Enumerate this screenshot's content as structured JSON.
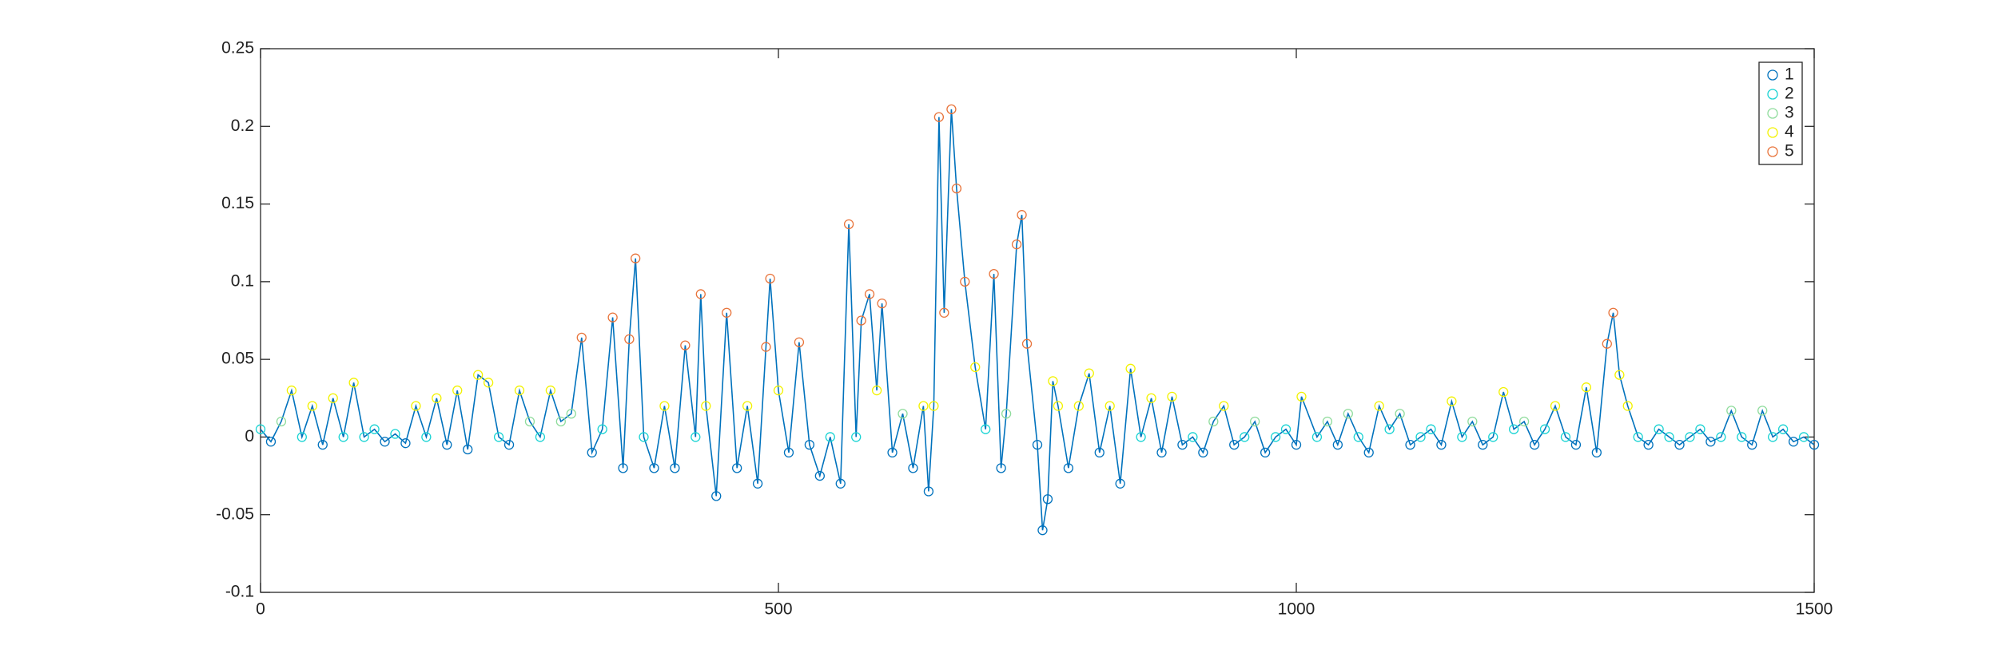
{
  "chart_data": {
    "type": "line",
    "x": [
      0,
      10,
      20,
      30,
      40,
      50,
      60,
      70,
      80,
      90,
      100,
      110,
      120,
      130,
      140,
      150,
      160,
      170,
      180,
      190,
      200,
      210,
      220,
      230,
      240,
      250,
      260,
      270,
      280,
      290,
      300,
      310,
      320,
      330,
      340,
      350,
      356,
      362,
      370,
      380,
      390,
      400,
      410,
      420,
      425,
      430,
      440,
      450,
      460,
      470,
      480,
      488,
      492,
      500,
      510,
      520,
      530,
      540,
      550,
      560,
      568,
      575,
      580,
      588,
      595,
      600,
      610,
      620,
      630,
      640,
      645,
      650,
      655,
      660,
      667,
      672,
      680,
      690,
      700,
      708,
      715,
      720,
      730,
      735,
      740,
      750,
      755,
      760,
      765,
      770,
      780,
      790,
      800,
      810,
      820,
      830,
      840,
      850,
      860,
      870,
      880,
      890,
      900,
      910,
      920,
      930,
      940,
      950,
      960,
      970,
      980,
      990,
      1000,
      1005,
      1020,
      1030,
      1040,
      1050,
      1060,
      1070,
      1080,
      1090,
      1100,
      1110,
      1120,
      1130,
      1140,
      1150,
      1160,
      1170,
      1180,
      1190,
      1200,
      1210,
      1220,
      1230,
      1240,
      1250,
      1260,
      1270,
      1280,
      1290,
      1300,
      1306,
      1312,
      1320,
      1330,
      1340,
      1350,
      1360,
      1370,
      1380,
      1390,
      1400,
      1410,
      1420,
      1430,
      1440,
      1450,
      1460,
      1470,
      1480,
      1490,
      1500
    ],
    "values": [
      0.005,
      -0.003,
      0.01,
      0.03,
      0,
      0.02,
      -0.005,
      0.025,
      0,
      0.035,
      0,
      0.005,
      -0.003,
      0.002,
      -0.004,
      0.02,
      0,
      0.025,
      -0.005,
      0.03,
      -0.008,
      0.04,
      0.035,
      0,
      -0.005,
      0.03,
      0.01,
      0,
      0.03,
      0.01,
      0.015,
      0.064,
      -0.01,
      0.005,
      0.077,
      -0.02,
      0.063,
      0.115,
      0,
      -0.02,
      0.02,
      -0.02,
      0.059,
      0,
      0.092,
      0.02,
      -0.038,
      0.08,
      -0.02,
      0.02,
      -0.03,
      0.058,
      0.102,
      0.03,
      -0.01,
      0.061,
      -0.005,
      -0.025,
      0,
      -0.03,
      0.137,
      0,
      0.075,
      0.092,
      0.03,
      0.086,
      -0.01,
      0.015,
      -0.02,
      0.02,
      -0.035,
      0.02,
      0.206,
      0.08,
      0.211,
      0.16,
      0.1,
      0.045,
      0.005,
      0.105,
      -0.02,
      0.015,
      0.124,
      0.143,
      0.06,
      -0.005,
      -0.06,
      -0.04,
      0.036,
      0.02,
      -0.02,
      0.02,
      0.041,
      -0.01,
      0.02,
      -0.03,
      0.044,
      0,
      0.025,
      -0.01,
      0.026,
      -0.005,
      0,
      -0.01,
      0.01,
      0.02,
      -0.005,
      0,
      0.01,
      -0.01,
      0,
      0.005,
      -0.005,
      0.026,
      0,
      0.01,
      -0.005,
      0.015,
      0,
      -0.01,
      0.02,
      0.005,
      0.015,
      -0.005,
      0,
      0.005,
      -0.005,
      0.023,
      0,
      0.01,
      -0.005,
      0,
      0.029,
      0.005,
      0.01,
      -0.005,
      0.005,
      0.02,
      0,
      -0.005,
      0.032,
      -0.01,
      0.06,
      0.08,
      0.04,
      0.02,
      0,
      -0.005,
      0.005,
      0,
      -0.005,
      0,
      0.005,
      -0.003,
      0,
      0.017,
      0,
      -0.005,
      0.017,
      0,
      0.005,
      -0.003,
      0,
      -0.005
    ],
    "point_groups": [
      1,
      0,
      2,
      3,
      1,
      3,
      0,
      3,
      1,
      3,
      1,
      1,
      0,
      1,
      0,
      3,
      1,
      3,
      0,
      3,
      0,
      3,
      3,
      1,
      0,
      3,
      2,
      1,
      3,
      2,
      2,
      4,
      0,
      1,
      4,
      0,
      4,
      4,
      1,
      0,
      3,
      0,
      4,
      1,
      4,
      3,
      0,
      4,
      0,
      3,
      0,
      4,
      4,
      3,
      0,
      4,
      0,
      0,
      1,
      0,
      4,
      1,
      4,
      4,
      3,
      4,
      0,
      2,
      0,
      3,
      0,
      3,
      4,
      4,
      4,
      4,
      4,
      3,
      1,
      4,
      0,
      2,
      4,
      4,
      4,
      0,
      0,
      0,
      3,
      3,
      0,
      3,
      3,
      0,
      3,
      0,
      3,
      1,
      3,
      0,
      3,
      0,
      1,
      0,
      2,
      3,
      0,
      1,
      2,
      0,
      1,
      1,
      0,
      3,
      1,
      2,
      0,
      2,
      1,
      0,
      3,
      1,
      2,
      0,
      1,
      1,
      0,
      3,
      1,
      2,
      0,
      1,
      3,
      1,
      2,
      0,
      1,
      3,
      1,
      0,
      3,
      0,
      4,
      4,
      3,
      3,
      1,
      0,
      1,
      1,
      0,
      1,
      1,
      0,
      1,
      2,
      1,
      0,
      2,
      1,
      1,
      0,
      1,
      0
    ],
    "color": "#0072bd",
    "legend": [
      {
        "name": "1",
        "color": "#0072bd"
      },
      {
        "name": "2",
        "color": "#19d3d3"
      },
      {
        "name": "3",
        "color": "#8fdc9c"
      },
      {
        "name": "4",
        "color": "#f2f200"
      },
      {
        "name": "5",
        "color": "#e8743b"
      }
    ],
    "legend_position": "upper right",
    "xlim": [
      0,
      1500
    ],
    "xticks": [
      0,
      500,
      1000,
      1500
    ],
    "ylim": [
      -0.1,
      0.25
    ],
    "yticks": [
      -0.1,
      -0.05,
      0,
      0.05,
      0.1,
      0.15,
      0.2,
      0.25
    ]
  }
}
